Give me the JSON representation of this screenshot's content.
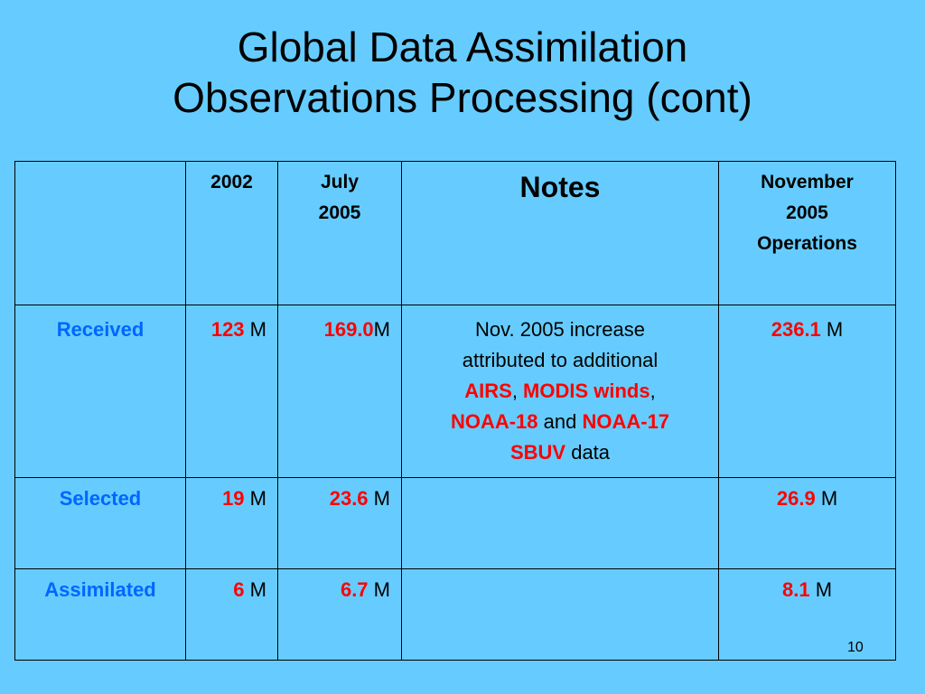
{
  "title": {
    "line1": "Global Data Assimilation",
    "line2": "Observations Processing (cont)"
  },
  "table": {
    "headers": {
      "blank": "",
      "col_2002": "2002",
      "col_july_1": "July",
      "col_july_2": "2005",
      "col_notes": "Notes",
      "col_nov_1": "November",
      "col_nov_2": "2005",
      "col_nov_3": "Operations"
    },
    "rows": [
      {
        "label": "Received",
        "v2002": "123",
        "vjuly": "169.0",
        "vnov": "236.1"
      },
      {
        "label": "Selected",
        "v2002": "19",
        "vjuly": "23.6",
        "vnov": "26.9"
      },
      {
        "label": "Assimilated",
        "v2002": "6",
        "vjuly": "6.7",
        "vnov": "8.1"
      }
    ],
    "unit": "M",
    "notes": {
      "t1": "Nov. 2005 increase",
      "t2": "attributed to additional",
      "airs": "AIRS",
      "comma1": ", ",
      "modis": "MODIS winds",
      "comma2": ",",
      "noaa18": "NOAA-18",
      "and": " and ",
      "noaa17": "NOAA-17",
      "sbuv": "SBUV",
      "data": " data"
    }
  },
  "page_number": "10",
  "colors": {
    "background": "#66ccff",
    "label": "#0066ff",
    "value": "#ff0000"
  }
}
